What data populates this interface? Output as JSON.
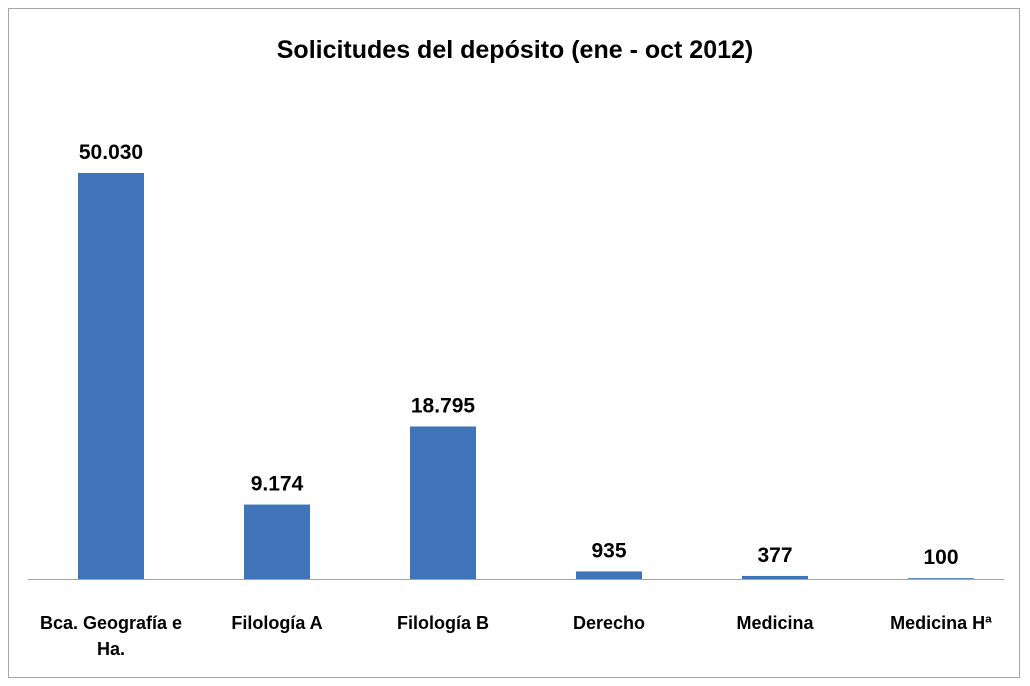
{
  "chart_data": {
    "type": "bar",
    "title": "Solicitudes del depósito (ene - oct 2012)",
    "categories": [
      "Bca. Geografía e Ha.",
      "Filología A",
      "Filología B",
      "Derecho",
      "Medicina",
      "Medicina Hª"
    ],
    "values": [
      50030,
      9174,
      18795,
      935,
      377,
      100
    ],
    "value_labels": [
      "50.030",
      "9.174",
      "18.795",
      "935",
      "377",
      "100"
    ],
    "color": "#3f74b8"
  }
}
